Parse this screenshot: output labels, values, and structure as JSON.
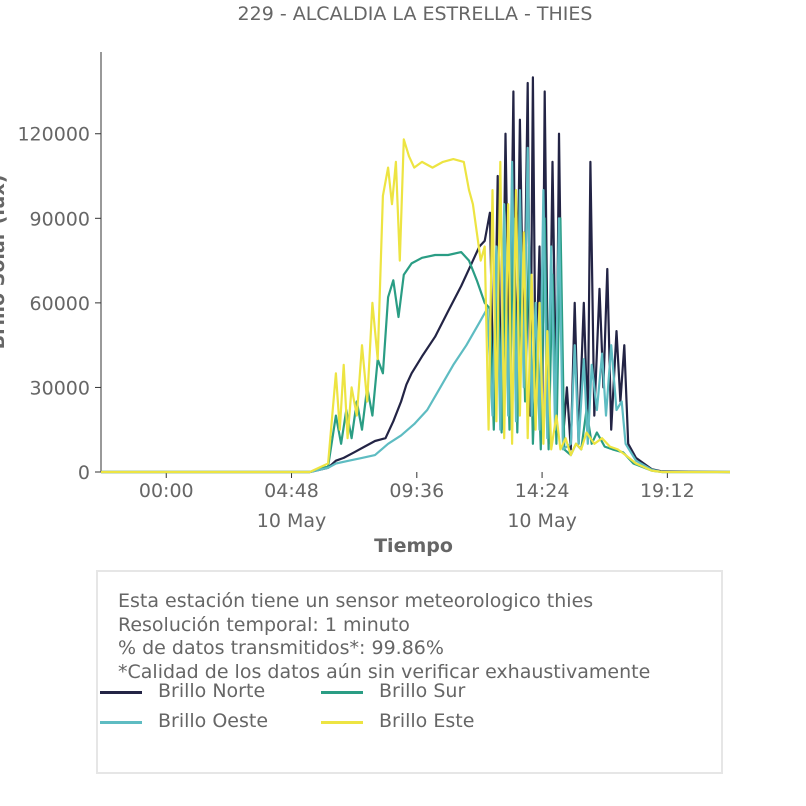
{
  "chart_data": {
    "type": "line",
    "title": "229 - ALCALDIA LA ESTRELLA - THIES",
    "xlabel": "Tiempo",
    "ylabel": "Brillo Solar (lux)",
    "x_ticks": [
      {
        "time": "00:00",
        "date": ""
      },
      {
        "time": "04:48",
        "date": "10 May"
      },
      {
        "time": "09:36",
        "date": ""
      },
      {
        "time": "14:24",
        "date": "10 May"
      },
      {
        "time": "19:12",
        "date": ""
      }
    ],
    "x_range_hours": [
      -2.5,
      21.6
    ],
    "y_ticks": [
      0,
      30000,
      60000,
      90000,
      120000
    ],
    "ylim": [
      0,
      149000
    ],
    "grid": false,
    "series": [
      {
        "name": "Brillo Norte",
        "color": "#232445",
        "points": [
          [
            -2.5,
            0
          ],
          [
            5.5,
            0
          ],
          [
            6.2,
            1500
          ],
          [
            6.5,
            4000
          ],
          [
            6.8,
            5000
          ],
          [
            7.2,
            7000
          ],
          [
            7.6,
            9000
          ],
          [
            8.0,
            11000
          ],
          [
            8.4,
            12000
          ],
          [
            8.7,
            18000
          ],
          [
            9.0,
            25000
          ],
          [
            9.2,
            31000
          ],
          [
            9.4,
            35000
          ],
          [
            9.8,
            41000
          ],
          [
            10.3,
            48000
          ],
          [
            10.8,
            57000
          ],
          [
            11.3,
            66000
          ],
          [
            11.7,
            74000
          ],
          [
            12.0,
            80000
          ],
          [
            12.2,
            82000
          ],
          [
            12.4,
            92000
          ],
          [
            12.55,
            20000
          ],
          [
            12.7,
            105000
          ],
          [
            12.85,
            15000
          ],
          [
            13.0,
            120000
          ],
          [
            13.15,
            30000
          ],
          [
            13.3,
            135000
          ],
          [
            13.4,
            25000
          ],
          [
            13.55,
            125000
          ],
          [
            13.7,
            40000
          ],
          [
            13.85,
            138000
          ],
          [
            13.95,
            20000
          ],
          [
            14.05,
            140000
          ],
          [
            14.15,
            30000
          ],
          [
            14.3,
            80000
          ],
          [
            14.4,
            15000
          ],
          [
            14.5,
            135000
          ],
          [
            14.65,
            10000
          ],
          [
            14.8,
            110000
          ],
          [
            14.95,
            20000
          ],
          [
            15.05,
            120000
          ],
          [
            15.2,
            12000
          ],
          [
            15.35,
            30000
          ],
          [
            15.5,
            8000
          ],
          [
            15.65,
            60000
          ],
          [
            15.8,
            10000
          ],
          [
            16.0,
            60000
          ],
          [
            16.15,
            15000
          ],
          [
            16.25,
            110000
          ],
          [
            16.4,
            20000
          ],
          [
            16.6,
            65000
          ],
          [
            16.75,
            30000
          ],
          [
            16.9,
            72000
          ],
          [
            17.05,
            15000
          ],
          [
            17.25,
            50000
          ],
          [
            17.4,
            25000
          ],
          [
            17.55,
            45000
          ],
          [
            17.7,
            10000
          ],
          [
            18.0,
            5000
          ],
          [
            18.6,
            1000
          ],
          [
            19.0,
            200
          ],
          [
            21.6,
            0
          ]
        ]
      },
      {
        "name": "Brillo Sur",
        "color": "#2a9d84",
        "points": [
          [
            -2.5,
            0
          ],
          [
            5.5,
            0
          ],
          [
            6.2,
            2000
          ],
          [
            6.5,
            20000
          ],
          [
            6.7,
            10000
          ],
          [
            6.9,
            22000
          ],
          [
            7.1,
            12000
          ],
          [
            7.3,
            25000
          ],
          [
            7.5,
            15000
          ],
          [
            7.7,
            30000
          ],
          [
            7.9,
            20000
          ],
          [
            8.1,
            40000
          ],
          [
            8.3,
            35000
          ],
          [
            8.5,
            62000
          ],
          [
            8.7,
            68000
          ],
          [
            8.9,
            55000
          ],
          [
            9.1,
            70000
          ],
          [
            9.4,
            74000
          ],
          [
            9.8,
            76000
          ],
          [
            10.3,
            77000
          ],
          [
            10.8,
            77000
          ],
          [
            11.3,
            78000
          ],
          [
            11.6,
            75000
          ],
          [
            11.9,
            68000
          ],
          [
            12.2,
            60000
          ],
          [
            12.4,
            58000
          ],
          [
            12.55,
            15000
          ],
          [
            12.7,
            70000
          ],
          [
            12.85,
            14000
          ],
          [
            13.0,
            75000
          ],
          [
            13.15,
            15000
          ],
          [
            13.3,
            90000
          ],
          [
            13.45,
            14000
          ],
          [
            13.6,
            78000
          ],
          [
            13.75,
            25000
          ],
          [
            13.9,
            80000
          ],
          [
            14.05,
            10000
          ],
          [
            14.2,
            50000
          ],
          [
            14.35,
            8000
          ],
          [
            14.5,
            90000
          ],
          [
            14.65,
            8000
          ],
          [
            14.8,
            70000
          ],
          [
            14.95,
            10000
          ],
          [
            15.1,
            90000
          ],
          [
            15.25,
            8000
          ],
          [
            15.5,
            6000
          ],
          [
            15.7,
            10000
          ],
          [
            15.9,
            8000
          ],
          [
            16.1,
            22000
          ],
          [
            16.3,
            10000
          ],
          [
            16.5,
            14000
          ],
          [
            16.8,
            9000
          ],
          [
            17.1,
            8000
          ],
          [
            17.5,
            7000
          ],
          [
            17.9,
            3000
          ],
          [
            18.6,
            500
          ],
          [
            19.0,
            0
          ],
          [
            21.6,
            0
          ]
        ]
      },
      {
        "name": "Brillo Oeste",
        "color": "#5ebcc2",
        "points": [
          [
            -2.5,
            0
          ],
          [
            5.5,
            0
          ],
          [
            6.2,
            1500
          ],
          [
            6.5,
            3000
          ],
          [
            7.0,
            4000
          ],
          [
            7.5,
            5000
          ],
          [
            8.0,
            6000
          ],
          [
            8.5,
            10000
          ],
          [
            9.0,
            13000
          ],
          [
            9.5,
            17000
          ],
          [
            10.0,
            22000
          ],
          [
            10.5,
            30000
          ],
          [
            11.0,
            38000
          ],
          [
            11.5,
            45000
          ],
          [
            12.0,
            53000
          ],
          [
            12.3,
            58000
          ],
          [
            12.5,
            20000
          ],
          [
            12.65,
            80000
          ],
          [
            12.8,
            15000
          ],
          [
            12.95,
            95000
          ],
          [
            13.1,
            20000
          ],
          [
            13.25,
            110000
          ],
          [
            13.4,
            18000
          ],
          [
            13.55,
            100000
          ],
          [
            13.7,
            30000
          ],
          [
            13.85,
            115000
          ],
          [
            14.0,
            20000
          ],
          [
            14.15,
            60000
          ],
          [
            14.3,
            15000
          ],
          [
            14.45,
            100000
          ],
          [
            14.6,
            12000
          ],
          [
            14.75,
            80000
          ],
          [
            14.9,
            15000
          ],
          [
            15.05,
            90000
          ],
          [
            15.2,
            8000
          ],
          [
            15.5,
            10000
          ],
          [
            15.65,
            45000
          ],
          [
            15.8,
            10000
          ],
          [
            16.0,
            40000
          ],
          [
            16.15,
            10000
          ],
          [
            16.3,
            38000
          ],
          [
            16.5,
            22000
          ],
          [
            16.7,
            42000
          ],
          [
            16.85,
            20000
          ],
          [
            17.05,
            45000
          ],
          [
            17.25,
            22000
          ],
          [
            17.45,
            25000
          ],
          [
            17.6,
            10000
          ],
          [
            18.0,
            4000
          ],
          [
            18.6,
            800
          ],
          [
            19.0,
            0
          ],
          [
            21.6,
            0
          ]
        ]
      },
      {
        "name": "Brillo Este",
        "color": "#ede442",
        "points": [
          [
            -2.5,
            0
          ],
          [
            5.5,
            0
          ],
          [
            6.2,
            3000
          ],
          [
            6.5,
            35000
          ],
          [
            6.65,
            15000
          ],
          [
            6.8,
            38000
          ],
          [
            6.95,
            12000
          ],
          [
            7.1,
            30000
          ],
          [
            7.3,
            20000
          ],
          [
            7.5,
            45000
          ],
          [
            7.7,
            25000
          ],
          [
            7.9,
            60000
          ],
          [
            8.1,
            40000
          ],
          [
            8.3,
            98000
          ],
          [
            8.5,
            108000
          ],
          [
            8.65,
            95000
          ],
          [
            8.8,
            110000
          ],
          [
            8.95,
            75000
          ],
          [
            9.1,
            118000
          ],
          [
            9.3,
            112000
          ],
          [
            9.5,
            108000
          ],
          [
            9.8,
            110000
          ],
          [
            10.2,
            108000
          ],
          [
            10.6,
            110000
          ],
          [
            11.0,
            111000
          ],
          [
            11.4,
            110000
          ],
          [
            11.6,
            100000
          ],
          [
            11.75,
            95000
          ],
          [
            11.9,
            85000
          ],
          [
            12.05,
            75000
          ],
          [
            12.2,
            80000
          ],
          [
            12.35,
            15000
          ],
          [
            12.5,
            100000
          ],
          [
            12.65,
            18000
          ],
          [
            12.8,
            110000
          ],
          [
            12.95,
            12000
          ],
          [
            13.1,
            95000
          ],
          [
            13.25,
            10000
          ],
          [
            13.4,
            100000
          ],
          [
            13.55,
            20000
          ],
          [
            13.7,
            85000
          ],
          [
            13.85,
            12000
          ],
          [
            14.0,
            70000
          ],
          [
            14.15,
            15000
          ],
          [
            14.3,
            60000
          ],
          [
            14.45,
            10000
          ],
          [
            14.6,
            50000
          ],
          [
            14.75,
            8000
          ],
          [
            14.95,
            20000
          ],
          [
            15.1,
            8000
          ],
          [
            15.3,
            12000
          ],
          [
            15.5,
            6000
          ],
          [
            15.7,
            10000
          ],
          [
            15.9,
            8000
          ],
          [
            16.1,
            14000
          ],
          [
            16.4,
            10000
          ],
          [
            16.7,
            12000
          ],
          [
            17.0,
            9000
          ],
          [
            17.3,
            8000
          ],
          [
            17.6,
            6000
          ],
          [
            18.0,
            3000
          ],
          [
            18.6,
            500
          ],
          [
            19.0,
            0
          ],
          [
            21.6,
            0
          ]
        ]
      }
    ]
  },
  "info": {
    "lines": [
      "Esta estación tiene un sensor meteorologico thies",
      "Resolución temporal: 1 minuto",
      "% de datos transmitidos*: 99.86%",
      "*Calidad de los datos aún sin verificar exhaustivamente"
    ]
  },
  "legend": [
    {
      "label": "Brillo Norte",
      "color": "#232445"
    },
    {
      "label": "Brillo Sur",
      "color": "#2a9d84"
    },
    {
      "label": "Brillo Oeste",
      "color": "#5ebcc2"
    },
    {
      "label": "Brillo Este",
      "color": "#ede442"
    }
  ]
}
